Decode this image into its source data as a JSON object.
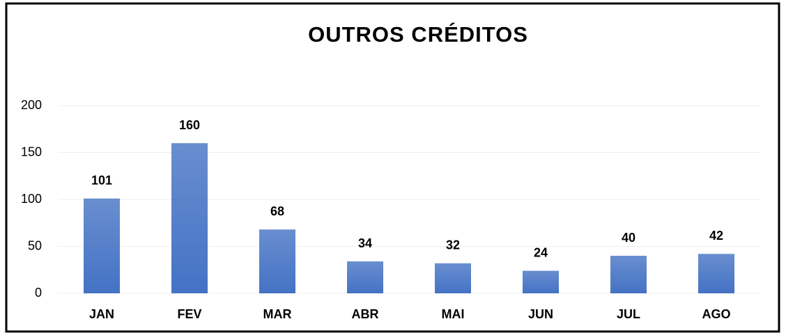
{
  "chart_data": {
    "type": "bar",
    "title": "OUTROS CRÉDITOS",
    "categories": [
      "JAN",
      "FEV",
      "MAR",
      "ABR",
      "MAI",
      "JUN",
      "JUL",
      "AGO"
    ],
    "values": [
      101,
      160,
      68,
      34,
      32,
      24,
      40,
      42
    ],
    "color": "#4472c4",
    "ylim": [
      0,
      200
    ],
    "yticks": [
      0,
      50,
      100,
      150,
      200
    ],
    "grid": true
  }
}
